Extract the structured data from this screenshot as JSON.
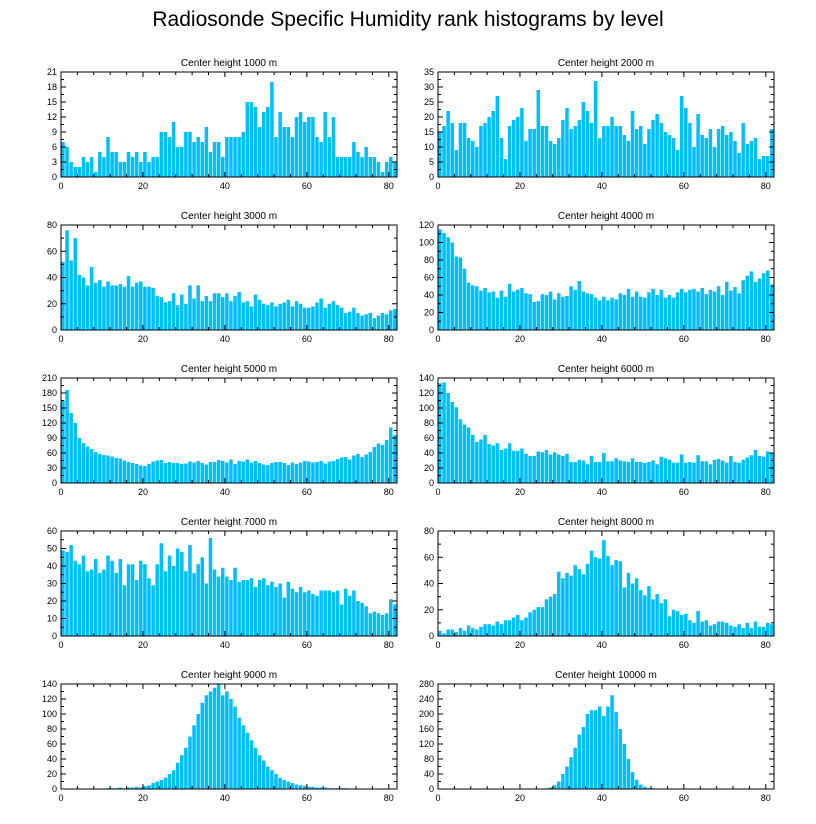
{
  "title": "Radiosonde Specific Humidity rank histograms by level",
  "colors": {
    "bar": "#00bfff",
    "axis": "#000000"
  },
  "chart_data": [
    {
      "type": "bar",
      "title": "Center height 1000 m",
      "xlim": [
        0,
        82
      ],
      "ylim": [
        0,
        21
      ],
      "xticks": [
        0,
        20,
        40,
        60,
        80
      ],
      "yticks": [
        0,
        3,
        6,
        9,
        12,
        15,
        18,
        21
      ],
      "values": [
        7,
        6,
        3,
        2,
        2,
        4,
        3,
        4,
        1,
        5,
        4,
        8,
        5,
        5,
        3,
        3,
        5,
        4,
        5,
        3,
        5,
        3,
        4,
        4,
        9,
        9,
        8,
        11,
        6,
        6,
        9,
        9,
        7,
        8,
        7,
        10,
        5,
        7,
        7,
        4,
        8,
        8,
        8,
        8,
        9,
        15,
        15,
        14,
        10,
        13,
        14,
        19,
        8,
        13,
        10,
        10,
        8,
        12,
        13,
        11,
        12,
        12,
        8,
        7,
        13,
        8,
        12,
        4,
        4,
        4,
        4,
        7,
        5,
        4,
        6,
        4,
        4,
        3,
        1,
        3,
        4,
        3
      ],
      "xlabel": "",
      "ylabel": ""
    },
    {
      "type": "bar",
      "title": "Center height 2000 m",
      "xlim": [
        0,
        82
      ],
      "ylim": [
        0,
        35
      ],
      "xticks": [
        0,
        20,
        40,
        60,
        80
      ],
      "yticks": [
        0,
        5,
        10,
        15,
        20,
        25,
        30,
        35
      ],
      "values": [
        15,
        17,
        22,
        18,
        9,
        18,
        18,
        13,
        12,
        10,
        17,
        18,
        20,
        22,
        27,
        13,
        6,
        17,
        19,
        20,
        23,
        12,
        16,
        16,
        29,
        17,
        17,
        12,
        11,
        13,
        19,
        23,
        16,
        17,
        19,
        25,
        22,
        18,
        32,
        13,
        17,
        17,
        20,
        17,
        17,
        14,
        12,
        22,
        16,
        17,
        11,
        16,
        19,
        21,
        18,
        15,
        14,
        13,
        9,
        27,
        23,
        18,
        10,
        21,
        14,
        13,
        16,
        10,
        16,
        17,
        14,
        15,
        12,
        8,
        18,
        11,
        12,
        13,
        6,
        7,
        7,
        16
      ],
      "xlabel": "",
      "ylabel": ""
    },
    {
      "type": "bar",
      "title": "Center height 3000 m",
      "xlim": [
        0,
        82
      ],
      "ylim": [
        0,
        80
      ],
      "xticks": [
        0,
        20,
        40,
        60,
        80
      ],
      "yticks": [
        0,
        20,
        40,
        60,
        80
      ],
      "values": [
        52,
        76,
        53,
        70,
        42,
        40,
        34,
        48,
        36,
        38,
        33,
        37,
        34,
        34,
        35,
        33,
        41,
        33,
        36,
        37,
        33,
        33,
        32,
        26,
        25,
        21,
        22,
        28,
        19,
        27,
        20,
        34,
        24,
        34,
        22,
        26,
        22,
        28,
        28,
        25,
        28,
        22,
        26,
        29,
        21,
        22,
        18,
        27,
        23,
        20,
        19,
        21,
        18,
        20,
        21,
        23,
        18,
        22,
        20,
        17,
        17,
        18,
        21,
        24,
        17,
        20,
        22,
        19,
        17,
        13,
        14,
        17,
        13,
        11,
        12,
        13,
        9,
        11,
        13,
        12,
        15,
        16
      ],
      "xlabel": "",
      "ylabel": ""
    },
    {
      "type": "bar",
      "title": "Center height 4000 m",
      "xlim": [
        0,
        82
      ],
      "ylim": [
        0,
        120
      ],
      "xticks": [
        0,
        20,
        40,
        60,
        80
      ],
      "yticks": [
        0,
        20,
        40,
        60,
        80,
        100,
        120
      ],
      "values": [
        115,
        111,
        106,
        100,
        84,
        83,
        70,
        54,
        51,
        50,
        45,
        48,
        43,
        44,
        37,
        45,
        38,
        53,
        44,
        46,
        48,
        42,
        41,
        32,
        33,
        41,
        40,
        44,
        35,
        42,
        38,
        39,
        50,
        46,
        56,
        44,
        42,
        41,
        37,
        34,
        38,
        34,
        37,
        35,
        42,
        40,
        47,
        38,
        44,
        38,
        37,
        43,
        47,
        40,
        46,
        37,
        40,
        37,
        43,
        47,
        43,
        46,
        47,
        44,
        48,
        41,
        46,
        44,
        50,
        40,
        55,
        45,
        49,
        42,
        57,
        62,
        67,
        55,
        59,
        65,
        68,
        52
      ],
      "xlabel": "",
      "ylabel": ""
    },
    {
      "type": "bar",
      "title": "Center height 5000 m",
      "xlim": [
        0,
        82
      ],
      "ylim": [
        0,
        210
      ],
      "xticks": [
        0,
        20,
        40,
        60,
        80
      ],
      "yticks": [
        0,
        30,
        60,
        90,
        120,
        150,
        180,
        210
      ],
      "values": [
        165,
        186,
        140,
        120,
        90,
        80,
        73,
        68,
        62,
        58,
        56,
        55,
        53,
        50,
        49,
        45,
        42,
        40,
        38,
        35,
        34,
        38,
        43,
        45,
        46,
        40,
        42,
        40,
        40,
        38,
        39,
        43,
        41,
        44,
        40,
        37,
        42,
        42,
        46,
        44,
        41,
        47,
        38,
        44,
        43,
        47,
        41,
        44,
        40,
        37,
        36,
        40,
        42,
        42,
        40,
        36,
        41,
        38,
        41,
        44,
        43,
        41,
        42,
        44,
        39,
        43,
        44,
        48,
        51,
        52,
        47,
        55,
        58,
        52,
        57,
        62,
        72,
        79,
        76,
        86,
        111,
        96
      ],
      "xlabel": "",
      "ylabel": ""
    },
    {
      "type": "bar",
      "title": "Center height 6000 m",
      "xlim": [
        0,
        82
      ],
      "ylim": [
        0,
        140
      ],
      "xticks": [
        0,
        20,
        40,
        60,
        80
      ],
      "yticks": [
        0,
        20,
        40,
        60,
        80,
        100,
        120,
        140
      ],
      "values": [
        133,
        134,
        120,
        108,
        101,
        85,
        78,
        74,
        64,
        55,
        58,
        64,
        52,
        50,
        53,
        44,
        46,
        53,
        43,
        43,
        46,
        39,
        36,
        36,
        42,
        41,
        44,
        38,
        41,
        38,
        36,
        39,
        28,
        28,
        31,
        30,
        25,
        36,
        28,
        28,
        40,
        29,
        29,
        33,
        30,
        29,
        28,
        33,
        28,
        28,
        27,
        28,
        30,
        25,
        35,
        33,
        31,
        27,
        27,
        38,
        27,
        28,
        27,
        37,
        29,
        29,
        25,
        31,
        32,
        30,
        27,
        36,
        28,
        27,
        31,
        34,
        37,
        44,
        36,
        35,
        42,
        40
      ],
      "xlabel": "",
      "ylabel": ""
    },
    {
      "type": "bar",
      "title": "Center height 7000 m",
      "xlim": [
        0,
        82
      ],
      "ylim": [
        0,
        60
      ],
      "xticks": [
        0,
        20,
        40,
        60,
        80
      ],
      "yticks": [
        0,
        10,
        20,
        30,
        40,
        50,
        60
      ],
      "values": [
        49,
        48,
        52,
        43,
        41,
        46,
        37,
        38,
        44,
        36,
        38,
        46,
        43,
        36,
        44,
        29,
        41,
        41,
        32,
        43,
        41,
        33,
        29,
        41,
        53,
        37,
        46,
        40,
        50,
        48,
        37,
        52,
        36,
        41,
        45,
        30,
        56,
        38,
        34,
        39,
        34,
        32,
        39,
        31,
        32,
        32,
        33,
        28,
        32,
        33,
        29,
        31,
        28,
        30,
        22,
        31,
        27,
        25,
        28,
        25,
        26,
        24,
        23,
        26,
        26,
        26,
        25,
        26,
        18,
        27,
        23,
        26,
        20,
        19,
        17,
        13,
        14,
        13,
        12,
        13,
        21,
        18
      ],
      "xlabel": "",
      "ylabel": ""
    },
    {
      "type": "bar",
      "title": "Center height 8000 m",
      "xlim": [
        0,
        82
      ],
      "ylim": [
        0,
        80
      ],
      "xticks": [
        0,
        20,
        40,
        60,
        80
      ],
      "yticks": [
        0,
        20,
        40,
        60,
        80
      ],
      "values": [
        4,
        2,
        5,
        5,
        3,
        6,
        4,
        8,
        6,
        5,
        7,
        9,
        9,
        8,
        11,
        9,
        12,
        12,
        14,
        16,
        12,
        14,
        18,
        20,
        22,
        22,
        28,
        30,
        32,
        49,
        44,
        48,
        46,
        54,
        51,
        47,
        55,
        65,
        60,
        59,
        73,
        61,
        54,
        58,
        57,
        37,
        48,
        40,
        44,
        35,
        31,
        38,
        28,
        32,
        25,
        28,
        15,
        20,
        19,
        16,
        17,
        12,
        10,
        19,
        11,
        12,
        8,
        9,
        11,
        11,
        10,
        8,
        7,
        9,
        6,
        10,
        6,
        11,
        7,
        7,
        10,
        9
      ],
      "xlabel": "",
      "ylabel": ""
    },
    {
      "type": "bar",
      "title": "Center height 9000 m",
      "xlim": [
        0,
        82
      ],
      "ylim": [
        0,
        140
      ],
      "xticks": [
        0,
        20,
        40,
        60,
        80
      ],
      "yticks": [
        0,
        20,
        40,
        60,
        80,
        100,
        120,
        140
      ],
      "values": [
        0,
        0,
        0,
        0,
        0,
        0,
        0,
        0,
        0,
        0,
        0,
        1,
        1,
        1,
        2,
        1,
        2,
        2,
        3,
        2,
        4,
        5,
        8,
        10,
        12,
        15,
        20,
        25,
        35,
        45,
        55,
        70,
        85,
        100,
        115,
        125,
        130,
        135,
        140,
        125,
        130,
        120,
        110,
        95,
        85,
        75,
        65,
        55,
        45,
        38,
        30,
        25,
        20,
        15,
        12,
        10,
        8,
        6,
        5,
        4,
        3,
        3,
        2,
        2,
        2,
        1,
        1,
        1,
        1,
        1,
        0,
        0,
        0,
        0,
        0,
        0,
        0,
        0,
        0,
        0,
        0,
        0
      ],
      "xlabel": "",
      "ylabel": ""
    },
    {
      "type": "bar",
      "title": "Center height 10000 m",
      "xlim": [
        0,
        82
      ],
      "ylim": [
        0,
        280
      ],
      "xticks": [
        0,
        20,
        40,
        60,
        80
      ],
      "yticks": [
        0,
        40,
        80,
        120,
        160,
        200,
        240,
        280
      ],
      "values": [
        0,
        0,
        0,
        0,
        0,
        0,
        0,
        0,
        0,
        0,
        0,
        0,
        0,
        0,
        0,
        0,
        0,
        0,
        0,
        0,
        0,
        0,
        0,
        0,
        0,
        1,
        2,
        4,
        10,
        20,
        40,
        60,
        85,
        110,
        145,
        165,
        200,
        210,
        210,
        220,
        195,
        220,
        250,
        205,
        160,
        120,
        80,
        45,
        25,
        12,
        6,
        3,
        2,
        1,
        0,
        0,
        0,
        0,
        0,
        0,
        0,
        0,
        0,
        0,
        0,
        0,
        0,
        0,
        0,
        0,
        0,
        0,
        0,
        0,
        0,
        0,
        0,
        0,
        0,
        0,
        0,
        0
      ],
      "xlabel": "",
      "ylabel": ""
    }
  ]
}
